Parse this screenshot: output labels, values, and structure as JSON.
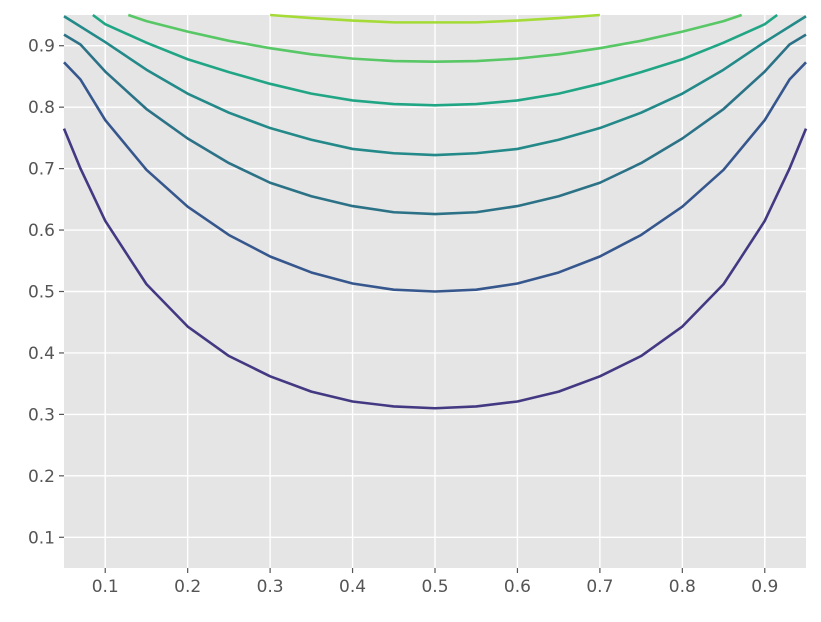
{
  "chart_data": {
    "type": "line",
    "title": "",
    "xlabel": "",
    "ylabel": "",
    "xlim": [
      0.05,
      0.95
    ],
    "ylim": [
      0.05,
      0.95
    ],
    "grid": true,
    "x_ticks": [
      "0.1",
      "0.2",
      "0.3",
      "0.4",
      "0.5",
      "0.6",
      "0.7",
      "0.8",
      "0.9"
    ],
    "y_ticks": [
      "0.1",
      "0.2",
      "0.3",
      "0.4",
      "0.5",
      "0.6",
      "0.7",
      "0.8",
      "0.9"
    ],
    "colors": {
      "background": "#e5e5e5",
      "grid": "#ffffff",
      "tick_text": "#555555",
      "tick_mark": "#555555"
    },
    "series": [
      {
        "color": "#433983",
        "x": [
          0.05,
          0.07,
          0.1,
          0.13,
          0.15,
          0.2,
          0.25,
          0.3,
          0.35,
          0.4,
          0.45,
          0.5,
          0.55,
          0.6,
          0.65,
          0.7,
          0.75,
          0.8,
          0.85,
          0.87,
          0.9,
          0.93,
          0.95
        ],
        "y": [
          0.765,
          0.7,
          0.615,
          0.553,
          0.512,
          0.443,
          0.395,
          0.362,
          0.337,
          0.321,
          0.313,
          0.31,
          0.313,
          0.321,
          0.337,
          0.362,
          0.395,
          0.443,
          0.512,
          0.553,
          0.615,
          0.7,
          0.765
        ]
      },
      {
        "color": "#36578d",
        "x": [
          0.05,
          0.07,
          0.1,
          0.15,
          0.2,
          0.25,
          0.3,
          0.35,
          0.4,
          0.45,
          0.5,
          0.55,
          0.6,
          0.65,
          0.7,
          0.75,
          0.8,
          0.85,
          0.9,
          0.93,
          0.95
        ],
        "y": [
          0.873,
          0.845,
          0.779,
          0.698,
          0.638,
          0.592,
          0.557,
          0.531,
          0.513,
          0.503,
          0.5,
          0.503,
          0.513,
          0.531,
          0.557,
          0.592,
          0.638,
          0.698,
          0.779,
          0.845,
          0.873
        ]
      },
      {
        "color": "#2c7287",
        "x": [
          0.05,
          0.07,
          0.1,
          0.15,
          0.2,
          0.25,
          0.3,
          0.35,
          0.4,
          0.45,
          0.5,
          0.55,
          0.6,
          0.65,
          0.7,
          0.75,
          0.8,
          0.85,
          0.9,
          0.93,
          0.95
        ],
        "y": [
          0.918,
          0.902,
          0.858,
          0.797,
          0.749,
          0.709,
          0.677,
          0.655,
          0.639,
          0.629,
          0.626,
          0.629,
          0.639,
          0.655,
          0.677,
          0.709,
          0.749,
          0.797,
          0.858,
          0.902,
          0.918
        ]
      },
      {
        "color": "#238989",
        "x": [
          0.05,
          0.1,
          0.15,
          0.2,
          0.25,
          0.3,
          0.35,
          0.4,
          0.45,
          0.5,
          0.55,
          0.6,
          0.65,
          0.7,
          0.75,
          0.8,
          0.85,
          0.9,
          0.95
        ],
        "y": [
          0.948,
          0.906,
          0.861,
          0.822,
          0.791,
          0.766,
          0.747,
          0.732,
          0.725,
          0.722,
          0.725,
          0.732,
          0.747,
          0.766,
          0.791,
          0.822,
          0.861,
          0.906,
          0.948
        ]
      },
      {
        "color": "#21a685",
        "x": [
          0.085,
          0.1,
          0.15,
          0.2,
          0.25,
          0.3,
          0.35,
          0.4,
          0.45,
          0.5,
          0.55,
          0.6,
          0.65,
          0.7,
          0.75,
          0.8,
          0.85,
          0.9,
          0.915
        ],
        "y": [
          0.95,
          0.935,
          0.905,
          0.878,
          0.857,
          0.838,
          0.822,
          0.811,
          0.805,
          0.803,
          0.805,
          0.811,
          0.822,
          0.838,
          0.857,
          0.878,
          0.905,
          0.935,
          0.95
        ]
      },
      {
        "color": "#58c765",
        "x": [
          0.128,
          0.15,
          0.2,
          0.25,
          0.3,
          0.35,
          0.4,
          0.45,
          0.5,
          0.55,
          0.6,
          0.65,
          0.7,
          0.75,
          0.8,
          0.85,
          0.872
        ],
        "y": [
          0.95,
          0.94,
          0.923,
          0.908,
          0.896,
          0.886,
          0.879,
          0.875,
          0.874,
          0.875,
          0.879,
          0.886,
          0.896,
          0.908,
          0.923,
          0.94,
          0.95
        ]
      },
      {
        "color": "#a5db36",
        "x": [
          0.3,
          0.35,
          0.4,
          0.45,
          0.5,
          0.55,
          0.6,
          0.65,
          0.7
        ],
        "y": [
          0.95,
          0.945,
          0.941,
          0.938,
          0.938,
          0.938,
          0.941,
          0.945,
          0.95
        ]
      }
    ]
  }
}
